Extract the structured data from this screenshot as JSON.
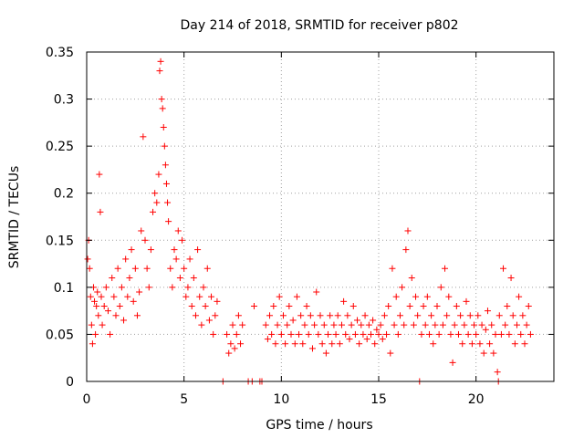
{
  "chart_data": {
    "type": "scatter",
    "title": "Day 214 of 2018, SRMTID for receiver p802",
    "xlabel": "GPS time / hours",
    "ylabel": "SRMTID / TECUs",
    "xlim": [
      0,
      24
    ],
    "ylim": [
      0,
      0.35
    ],
    "x_ticks": [
      0,
      5,
      10,
      15,
      20
    ],
    "x_tick_labels": [
      "0",
      "5",
      "10",
      "15",
      "20"
    ],
    "y_ticks": [
      0,
      0.05,
      0.1,
      0.15,
      0.2,
      0.25,
      0.3,
      0.35
    ],
    "y_tick_labels": [
      "0",
      "0.05",
      "0.1",
      "0.15",
      "0.2",
      "0.25",
      "0.3",
      "0.35"
    ],
    "grid": true,
    "marker": "+",
    "color": "#ff0000",
    "series": [
      {
        "name": "p802",
        "points": [
          [
            0.05,
            0.13
          ],
          [
            0.1,
            0.15
          ],
          [
            0.15,
            0.12
          ],
          [
            0.2,
            0.09
          ],
          [
            0.25,
            0.06
          ],
          [
            0.3,
            0.04
          ],
          [
            0.35,
            0.1
          ],
          [
            0.4,
            0.085
          ],
          [
            0.45,
            0.05
          ],
          [
            0.5,
            0.08
          ],
          [
            0.55,
            0.095
          ],
          [
            0.6,
            0.07
          ],
          [
            0.65,
            0.22
          ],
          [
            0.7,
            0.18
          ],
          [
            0.75,
            0.09
          ],
          [
            0.8,
            0.06
          ],
          [
            0.9,
            0.08
          ],
          [
            1.0,
            0.1
          ],
          [
            1.1,
            0.075
          ],
          [
            1.2,
            0.05
          ],
          [
            1.3,
            0.11
          ],
          [
            1.4,
            0.09
          ],
          [
            1.5,
            0.07
          ],
          [
            1.6,
            0.12
          ],
          [
            1.7,
            0.08
          ],
          [
            1.8,
            0.1
          ],
          [
            1.9,
            0.065
          ],
          [
            2.0,
            0.13
          ],
          [
            2.1,
            0.09
          ],
          [
            2.2,
            0.11
          ],
          [
            2.3,
            0.14
          ],
          [
            2.4,
            0.085
          ],
          [
            2.5,
            0.12
          ],
          [
            2.6,
            0.07
          ],
          [
            2.7,
            0.095
          ],
          [
            2.8,
            0.16
          ],
          [
            2.9,
            0.26
          ],
          [
            3.0,
            0.15
          ],
          [
            3.1,
            0.12
          ],
          [
            3.2,
            0.1
          ],
          [
            3.3,
            0.14
          ],
          [
            3.4,
            0.18
          ],
          [
            3.5,
            0.2
          ],
          [
            3.6,
            0.19
          ],
          [
            3.7,
            0.22
          ],
          [
            3.75,
            0.33
          ],
          [
            3.8,
            0.34
          ],
          [
            3.85,
            0.3
          ],
          [
            3.9,
            0.29
          ],
          [
            3.95,
            0.27
          ],
          [
            4.0,
            0.25
          ],
          [
            4.05,
            0.23
          ],
          [
            4.1,
            0.21
          ],
          [
            4.15,
            0.19
          ],
          [
            4.2,
            0.17
          ],
          [
            4.3,
            0.12
          ],
          [
            4.4,
            0.1
          ],
          [
            4.5,
            0.14
          ],
          [
            4.6,
            0.13
          ],
          [
            4.7,
            0.16
          ],
          [
            4.8,
            0.11
          ],
          [
            4.9,
            0.15
          ],
          [
            5.0,
            0.12
          ],
          [
            5.1,
            0.09
          ],
          [
            5.2,
            0.1
          ],
          [
            5.3,
            0.13
          ],
          [
            5.4,
            0.08
          ],
          [
            5.5,
            0.11
          ],
          [
            5.6,
            0.07
          ],
          [
            5.7,
            0.14
          ],
          [
            5.8,
            0.09
          ],
          [
            5.9,
            0.06
          ],
          [
            6.0,
            0.1
          ],
          [
            6.1,
            0.08
          ],
          [
            6.2,
            0.12
          ],
          [
            6.3,
            0.065
          ],
          [
            6.4,
            0.09
          ],
          [
            6.5,
            0.05
          ],
          [
            6.6,
            0.07
          ],
          [
            6.7,
            0.085
          ],
          [
            7.0,
            0.0
          ],
          [
            7.2,
            0.05
          ],
          [
            7.3,
            0.03
          ],
          [
            7.4,
            0.04
          ],
          [
            7.5,
            0.06
          ],
          [
            7.6,
            0.035
          ],
          [
            7.7,
            0.05
          ],
          [
            7.8,
            0.07
          ],
          [
            7.9,
            0.04
          ],
          [
            8.0,
            0.06
          ],
          [
            8.3,
            0.0
          ],
          [
            8.5,
            0.0
          ],
          [
            8.6,
            0.08
          ],
          [
            8.9,
            0.0
          ],
          [
            9.0,
            0.0
          ],
          [
            9.2,
            0.06
          ],
          [
            9.3,
            0.045
          ],
          [
            9.4,
            0.07
          ],
          [
            9.5,
            0.05
          ],
          [
            9.6,
            0.08
          ],
          [
            9.7,
            0.04
          ],
          [
            9.8,
            0.06
          ],
          [
            9.9,
            0.09
          ],
          [
            10.0,
            0.05
          ],
          [
            10.1,
            0.07
          ],
          [
            10.2,
            0.04
          ],
          [
            10.3,
            0.06
          ],
          [
            10.4,
            0.08
          ],
          [
            10.5,
            0.05
          ],
          [
            10.6,
            0.065
          ],
          [
            10.7,
            0.04
          ],
          [
            10.8,
            0.09
          ],
          [
            10.9,
            0.05
          ],
          [
            11.0,
            0.07
          ],
          [
            11.1,
            0.04
          ],
          [
            11.2,
            0.06
          ],
          [
            11.3,
            0.08
          ],
          [
            11.4,
            0.05
          ],
          [
            11.5,
            0.07
          ],
          [
            11.6,
            0.035
          ],
          [
            11.7,
            0.06
          ],
          [
            11.8,
            0.095
          ],
          [
            11.9,
            0.05
          ],
          [
            12.0,
            0.07
          ],
          [
            12.1,
            0.04
          ],
          [
            12.2,
            0.06
          ],
          [
            12.3,
            0.03
          ],
          [
            12.4,
            0.05
          ],
          [
            12.5,
            0.07
          ],
          [
            12.6,
            0.04
          ],
          [
            12.7,
            0.06
          ],
          [
            12.8,
            0.05
          ],
          [
            12.9,
            0.07
          ],
          [
            13.0,
            0.04
          ],
          [
            13.1,
            0.06
          ],
          [
            13.2,
            0.085
          ],
          [
            13.3,
            0.05
          ],
          [
            13.4,
            0.07
          ],
          [
            13.5,
            0.045
          ],
          [
            13.6,
            0.06
          ],
          [
            13.7,
            0.08
          ],
          [
            13.8,
            0.05
          ],
          [
            13.9,
            0.065
          ],
          [
            14.0,
            0.04
          ],
          [
            14.1,
            0.06
          ],
          [
            14.2,
            0.05
          ],
          [
            14.3,
            0.07
          ],
          [
            14.4,
            0.045
          ],
          [
            14.5,
            0.06
          ],
          [
            14.6,
            0.05
          ],
          [
            14.7,
            0.065
          ],
          [
            14.8,
            0.04
          ],
          [
            14.9,
            0.055
          ],
          [
            15.0,
            0.05
          ],
          [
            15.1,
            0.06
          ],
          [
            15.2,
            0.045
          ],
          [
            15.3,
            0.07
          ],
          [
            15.4,
            0.05
          ],
          [
            15.5,
            0.08
          ],
          [
            15.6,
            0.03
          ],
          [
            15.7,
            0.12
          ],
          [
            15.8,
            0.06
          ],
          [
            15.9,
            0.09
          ],
          [
            16.0,
            0.05
          ],
          [
            16.1,
            0.07
          ],
          [
            16.2,
            0.1
          ],
          [
            16.3,
            0.06
          ],
          [
            16.4,
            0.14
          ],
          [
            16.5,
            0.16
          ],
          [
            16.6,
            0.08
          ],
          [
            16.7,
            0.11
          ],
          [
            16.8,
            0.06
          ],
          [
            16.9,
            0.09
          ],
          [
            17.0,
            0.07
          ],
          [
            17.1,
            0.0
          ],
          [
            17.2,
            0.05
          ],
          [
            17.3,
            0.08
          ],
          [
            17.4,
            0.06
          ],
          [
            17.5,
            0.09
          ],
          [
            17.6,
            0.05
          ],
          [
            17.7,
            0.07
          ],
          [
            17.8,
            0.04
          ],
          [
            17.9,
            0.06
          ],
          [
            18.0,
            0.08
          ],
          [
            18.1,
            0.05
          ],
          [
            18.2,
            0.1
          ],
          [
            18.3,
            0.06
          ],
          [
            18.4,
            0.12
          ],
          [
            18.5,
            0.07
          ],
          [
            18.6,
            0.09
          ],
          [
            18.7,
            0.05
          ],
          [
            18.8,
            0.02
          ],
          [
            18.9,
            0.06
          ],
          [
            19.0,
            0.08
          ],
          [
            19.1,
            0.05
          ],
          [
            19.2,
            0.07
          ],
          [
            19.3,
            0.04
          ],
          [
            19.4,
            0.06
          ],
          [
            19.5,
            0.085
          ],
          [
            19.6,
            0.05
          ],
          [
            19.7,
            0.07
          ],
          [
            19.8,
            0.04
          ],
          [
            19.9,
            0.06
          ],
          [
            20.0,
            0.05
          ],
          [
            20.1,
            0.07
          ],
          [
            20.2,
            0.04
          ],
          [
            20.3,
            0.06
          ],
          [
            20.4,
            0.03
          ],
          [
            20.5,
            0.055
          ],
          [
            20.6,
            0.075
          ],
          [
            20.7,
            0.04
          ],
          [
            20.8,
            0.06
          ],
          [
            20.9,
            0.03
          ],
          [
            21.0,
            0.05
          ],
          [
            21.1,
            0.01
          ],
          [
            21.15,
            0.0
          ],
          [
            21.2,
            0.07
          ],
          [
            21.3,
            0.05
          ],
          [
            21.4,
            0.12
          ],
          [
            21.5,
            0.06
          ],
          [
            21.6,
            0.08
          ],
          [
            21.7,
            0.05
          ],
          [
            21.8,
            0.11
          ],
          [
            21.9,
            0.07
          ],
          [
            22.0,
            0.04
          ],
          [
            22.1,
            0.06
          ],
          [
            22.2,
            0.09
          ],
          [
            22.3,
            0.05
          ],
          [
            22.4,
            0.07
          ],
          [
            22.5,
            0.04
          ],
          [
            22.6,
            0.06
          ],
          [
            22.7,
            0.08
          ],
          [
            22.8,
            0.05
          ]
        ]
      }
    ]
  }
}
